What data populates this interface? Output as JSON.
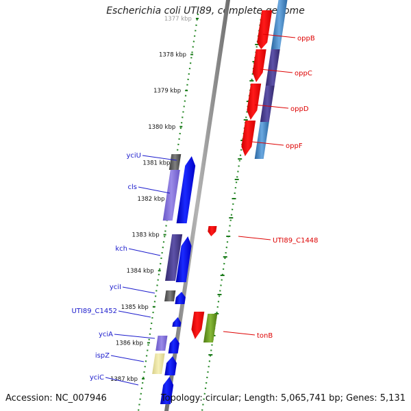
{
  "title": "Escherichia coli UTI89, complete genome",
  "footer": {
    "accession": "Accession: NC_007946",
    "topology": "Topology: circular; Length: 5,065,741 bp; Genes: 5,131"
  },
  "colors": {
    "backbone": "#8c8c8c",
    "forward_gene": "#0a14f0",
    "reverse_gene": "#ff0000",
    "forward_label": "#1a1acc",
    "reverse_label": "#dd0000",
    "ruler_dots": "#2a8a2a",
    "tick_label": "#111111"
  },
  "ruler": {
    "ticks": [
      {
        "label": "1377 kbp"
      },
      {
        "label": "1378 kbp"
      },
      {
        "label": "1379 kbp"
      },
      {
        "label": "1380 kbp"
      },
      {
        "label": "1381 kbp"
      },
      {
        "label": "1382 kbp"
      },
      {
        "label": "1383 kbp"
      },
      {
        "label": "1384 kbp"
      },
      {
        "label": "1385 kbp"
      },
      {
        "label": "1386 kbp"
      },
      {
        "label": "1387 kbp"
      }
    ]
  },
  "reverse_genes": [
    {
      "name": "oppB"
    },
    {
      "name": "oppC"
    },
    {
      "name": "oppD"
    },
    {
      "name": "oppF"
    },
    {
      "name": "UTI89_C1448"
    },
    {
      "name": "tonB"
    }
  ],
  "forward_genes": [
    {
      "name": "yciU"
    },
    {
      "name": "cls"
    },
    {
      "name": "kch"
    },
    {
      "name": "yciI"
    },
    {
      "name": "UTI89_C1452"
    },
    {
      "name": "yciA"
    },
    {
      "name": "ispZ"
    },
    {
      "name": "yciC"
    }
  ]
}
